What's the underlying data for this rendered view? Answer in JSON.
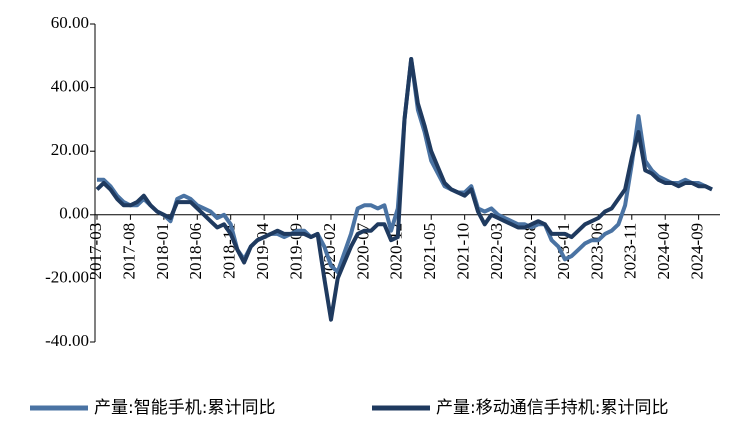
{
  "chart_data": {
    "type": "line",
    "categories": [
      "2017-03",
      null,
      null,
      null,
      null,
      "2017-08",
      null,
      null,
      null,
      null,
      "2018-01",
      null,
      null,
      null,
      null,
      "2018-06",
      null,
      null,
      null,
      null,
      "2018-11",
      null,
      null,
      null,
      null,
      "2019-04",
      null,
      null,
      null,
      null,
      "2019-09",
      null,
      null,
      null,
      null,
      "2020-02",
      null,
      null,
      null,
      null,
      "2020-07",
      null,
      null,
      null,
      null,
      "2020-12",
      null,
      null,
      null,
      null,
      "2021-05",
      null,
      null,
      null,
      null,
      "2021-10",
      null,
      null,
      null,
      null,
      "2022-03",
      null,
      null,
      null,
      null,
      "2022-08",
      null,
      null,
      null,
      null,
      "2023-01",
      null,
      null,
      null,
      null,
      "2023-06",
      null,
      null,
      null,
      null,
      "2023-11",
      null,
      null,
      null,
      null,
      "2024-04",
      null,
      null,
      null,
      null,
      "2024-09",
      null,
      null
    ],
    "series": [
      {
        "name": "产量:智能手机:累计同比",
        "color": "#4a73a3",
        "values": [
          11,
          11,
          9,
          6,
          4,
          3,
          3,
          5,
          3,
          1,
          0,
          -2,
          5,
          6,
          5,
          3,
          2,
          1,
          -1,
          0,
          -3,
          -11,
          -14,
          -10,
          -8,
          -7,
          -6,
          -6,
          -7,
          -6,
          -5,
          -5,
          -7,
          -6,
          -10,
          -16,
          -18,
          -12,
          -6,
          2,
          3,
          3,
          2,
          3,
          -5,
          2,
          30,
          49,
          33,
          26,
          17,
          13,
          9,
          8,
          7,
          7,
          9,
          2,
          1,
          2,
          0,
          -1,
          -2,
          -3,
          -3,
          -4,
          -3,
          -3,
          -8,
          -10,
          -14,
          -13,
          -11,
          -9,
          -8,
          -8,
          -6,
          -5,
          -3,
          3,
          16,
          31,
          17,
          14,
          12,
          11,
          10,
          10,
          11,
          10,
          10,
          9,
          8
        ]
      },
      {
        "name": "产量:移动通信手持机:累计同比",
        "color": "#1f3a5f",
        "values": [
          8,
          10,
          8,
          5,
          3,
          3,
          4,
          6,
          3,
          1,
          0,
          -1,
          4,
          4,
          4,
          2,
          0,
          -2,
          -4,
          -3,
          -6,
          -11,
          -15,
          -10,
          -8,
          -7,
          -6,
          -5,
          -6,
          -6,
          -6,
          -6,
          -7,
          -6,
          -20,
          -33,
          -20,
          -15,
          -10,
          -6,
          -5,
          -5,
          -3,
          -3,
          -8,
          -7,
          30,
          49,
          35,
          28,
          20,
          15,
          10,
          8,
          7,
          6,
          8,
          1,
          -3,
          0,
          -1,
          -2,
          -3,
          -4,
          -4,
          -3,
          -2,
          -3,
          -6,
          -6,
          -6,
          -7,
          -5,
          -3,
          -2,
          -1,
          1,
          2,
          5,
          8,
          18,
          26,
          14,
          13,
          11,
          10,
          10,
          9,
          10,
          10,
          9,
          9,
          8
        ]
      }
    ],
    "ylim": [
      -40,
      60
    ],
    "yticks": [
      {
        "value": -40,
        "label": "-40.00"
      },
      {
        "value": -20,
        "label": "-20.00"
      },
      {
        "value": 0,
        "label": "0.00"
      },
      {
        "value": 20,
        "label": "20.00"
      },
      {
        "value": 40,
        "label": "40.00"
      },
      {
        "value": 60,
        "label": "60.00"
      }
    ],
    "grid": false,
    "legend": "bottom"
  }
}
